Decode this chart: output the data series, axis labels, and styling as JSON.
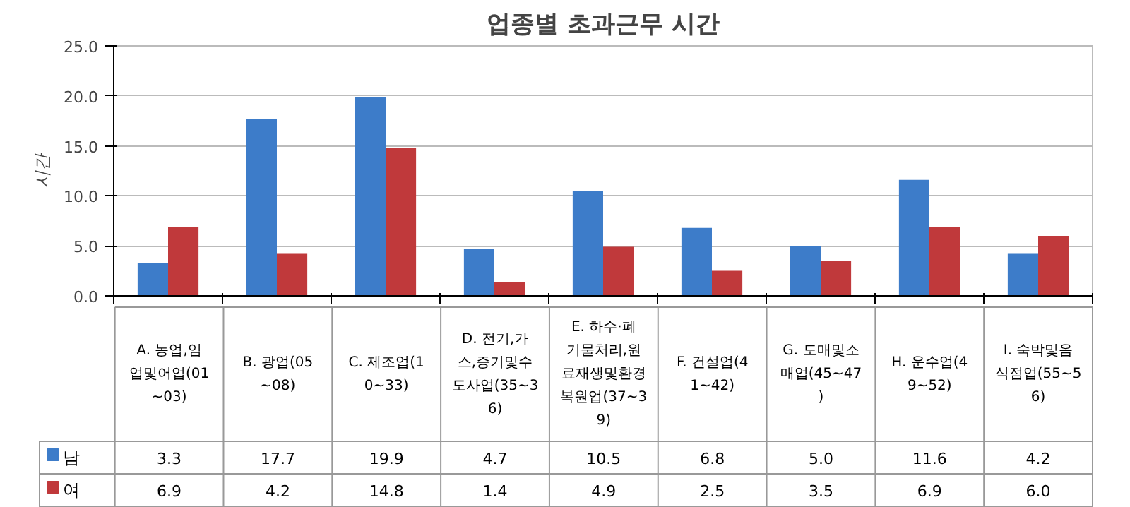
{
  "chart_data": {
    "type": "bar",
    "title": "업종별 초과근무 시간",
    "ylabel": "시간",
    "categories": [
      "A. 농업,임업및어업(01~03)",
      "B. 광업(05~08)",
      "C. 제조업(10~33)",
      "D. 전기,가스,증기및수도사업(35~36)",
      "E. 하수·폐기물처리,원료재생및환경복원업(37~39)",
      "F. 건설업(41~42)",
      "G. 도매및소매업(45~47)",
      "H. 운수업(49~52)",
      "I. 숙박및음식점업(55~56)"
    ],
    "series": [
      {
        "name": "남",
        "color": "#3d7cc9",
        "values": [
          3.3,
          17.7,
          19.9,
          4.7,
          10.5,
          6.8,
          5.0,
          11.6,
          4.2
        ],
        "value_labels": [
          "3.3",
          "17.7",
          "19.9",
          "4.7",
          "10.5",
          "6.8",
          "5.0",
          "11.6",
          "4.2"
        ]
      },
      {
        "name": "여",
        "color": "#c0393b",
        "values": [
          6.9,
          4.2,
          14.8,
          1.4,
          4.9,
          2.5,
          3.5,
          6.9,
          6.0
        ],
        "value_labels": [
          "6.9",
          "4.2",
          "14.8",
          "1.4",
          "4.9",
          "2.5",
          "3.5",
          "6.9",
          "6.0"
        ]
      }
    ],
    "ylim": [
      0,
      25
    ],
    "yticks": [
      {
        "value": 0,
        "label": "0.0"
      },
      {
        "value": 5,
        "label": "5.0"
      },
      {
        "value": 10,
        "label": "10.0"
      },
      {
        "value": 15,
        "label": "15.0"
      },
      {
        "value": 20,
        "label": "20.0"
      },
      {
        "value": 25,
        "label": "25.0"
      }
    ],
    "grid": "y",
    "legend": "bottom"
  }
}
